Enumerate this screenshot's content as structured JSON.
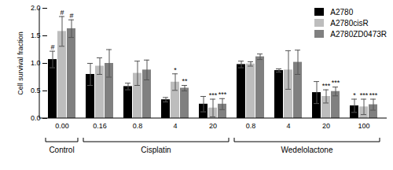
{
  "chart_data": {
    "type": "bar",
    "y_label": "Cell survival fraction",
    "categories": [
      "0.00",
      "0.16",
      "0.8",
      "4",
      "20",
      "0.8",
      "4",
      "20",
      "100"
    ],
    "groups": [
      {
        "label": "Control",
        "from": 0,
        "to": 0
      },
      {
        "label": "Cisplatin",
        "from": 1,
        "to": 4
      },
      {
        "label": "Wedelolactone",
        "from": 5,
        "to": 8
      }
    ],
    "series": [
      {
        "name": "A2780",
        "color": "#000000",
        "values": [
          1.07,
          0.8,
          0.58,
          0.34,
          0.26,
          0.98,
          0.87,
          0.47,
          0.23
        ],
        "errors": [
          0.15,
          0.2,
          0.06,
          0.04,
          0.14,
          0.06,
          0.03,
          0.2,
          0.12
        ],
        "annotations": [
          "#",
          null,
          null,
          null,
          null,
          null,
          null,
          null,
          "*"
        ]
      },
      {
        "name": "A2780cisR",
        "color": "#bdbdbd",
        "values": [
          1.58,
          0.95,
          0.82,
          0.66,
          0.19,
          0.99,
          0.88,
          0.4,
          0.21
        ],
        "errors": [
          0.27,
          0.15,
          0.22,
          0.15,
          0.16,
          0.04,
          0.35,
          0.12,
          0.14
        ],
        "annotations": [
          "#",
          null,
          null,
          "*",
          "***",
          null,
          null,
          "***",
          "***"
        ]
      },
      {
        "name": "A2780ZD0473R",
        "color": "#808080",
        "values": [
          1.63,
          1.0,
          0.88,
          0.55,
          0.26,
          1.12,
          1.02,
          0.49,
          0.25
        ],
        "errors": [
          0.16,
          0.25,
          0.18,
          0.05,
          0.1,
          0.05,
          0.22,
          0.08,
          0.1
        ],
        "annotations": [
          "#",
          null,
          null,
          "**",
          "***",
          null,
          null,
          "***",
          "***"
        ]
      }
    ],
    "ylim": [
      0,
      2
    ],
    "yticks": [
      {
        "value": 0,
        "label": "0.0"
      },
      {
        "value": 0.5,
        "label": "0.5"
      },
      {
        "value": 1,
        "label": "1.0"
      },
      {
        "value": 1.5,
        "label": "1.5"
      },
      {
        "value": 2,
        "label": "2.0"
      }
    ],
    "legend": "top-right",
    "grid": false
  }
}
